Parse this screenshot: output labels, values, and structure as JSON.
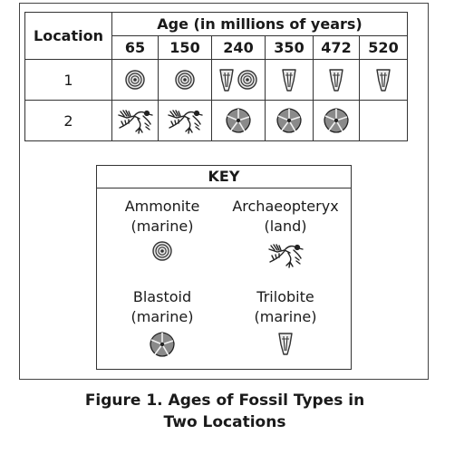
{
  "table": {
    "location_header": "Location",
    "age_header": "Age (in millions of years)",
    "ages": [
      "65",
      "150",
      "240",
      "350",
      "472",
      "520"
    ],
    "rows": [
      {
        "label": "1",
        "cells": [
          [
            "ammonite"
          ],
          [
            "ammonite"
          ],
          [
            "trilobite",
            "ammonite"
          ],
          [
            "trilobite"
          ],
          [
            "trilobite"
          ],
          [
            "trilobite"
          ]
        ]
      },
      {
        "label": "2",
        "cells": [
          [
            "archaeopteryx"
          ],
          [
            "archaeopteryx"
          ],
          [
            "blastoid"
          ],
          [
            "blastoid"
          ],
          [
            "blastoid"
          ],
          []
        ]
      }
    ]
  },
  "key": {
    "title": "KEY",
    "items": [
      {
        "name": "Ammonite",
        "habitat": "(marine)",
        "icon": "ammonite-icon"
      },
      {
        "name": "Archaeopteryx",
        "habitat": "(land)",
        "icon": "archaeopteryx-icon"
      },
      {
        "name": "Blastoid",
        "habitat": "(marine)",
        "icon": "blastoid-icon"
      },
      {
        "name": "Trilobite",
        "habitat": "(marine)",
        "icon": "trilobite-icon"
      }
    ]
  },
  "caption": {
    "line1": "Figure 1. Ages of Fossil Types in",
    "line2": "Two Locations"
  }
}
